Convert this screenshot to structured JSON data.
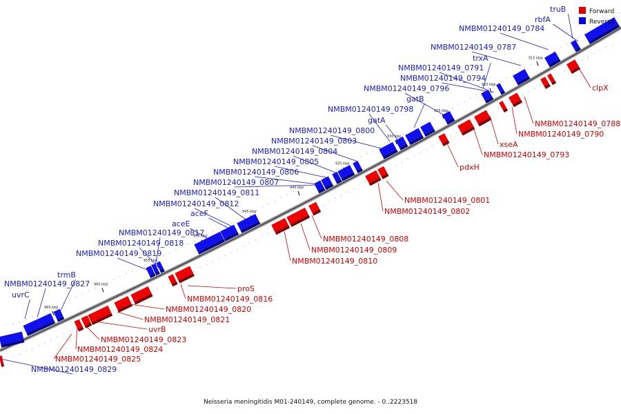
{
  "caption": "Neisseria meningitidis M01-240149, complete genome. - 0..2223518",
  "legend": [
    {
      "label": "Forward",
      "color": "#e00000"
    },
    {
      "label": "Reverse",
      "color": "#0000ee"
    }
  ],
  "ticks": [
    "915 kbp",
    "920 kbp",
    "925 kbp",
    "930 kbp",
    "935 kbp",
    "940 kbp",
    "945 kbp",
    "950 kbp",
    "955 kbp",
    "960 kbp",
    "965 kbp"
  ],
  "forward_labels": [
    "clpX",
    "NMBM01240149_0788",
    "NMBM01240149_0790",
    "xseA",
    "NMBM01240149_0793",
    "pdxH",
    "NMBM01240149_0801",
    "NMBM01240149_0802",
    "NMBM01240149_0808",
    "NMBM01240149_0809",
    "NMBM01240149_0810",
    "proS",
    "NMBM01240149_0816",
    "NMBM01240149_0820",
    "NMBM01240149_0821",
    "uvrB",
    "NMBM01240149_0823",
    "NMBM01240149_0824",
    "NMBM01240149_0825"
  ],
  "reverse_labels": [
    "truB",
    "rbfA",
    "NMBM01240149_0784",
    "NMBM01240149_0787",
    "trxA",
    "NMBM01240149_0791",
    "NMBM01240149_0794",
    "NMBM01240149_0796",
    "gatB",
    "NMBM01240149_0798",
    "gatA",
    "NMBM01240149_0800",
    "NMBM01240149_0803",
    "NMBM01240149_0804",
    "NMBM01240149_0805",
    "NMBM01240149_0806",
    "NMBM01240149_0807",
    "NMBM01240149_0811",
    "NMBM01240149_0812",
    "aceF",
    "aceE",
    "NMBM01240149_0817",
    "NMBM01240149_0818",
    "NMBM01240149_0819",
    "trmB",
    "NMBM01240149_0827",
    "uvrC",
    "NMBM01240149_0829"
  ]
}
